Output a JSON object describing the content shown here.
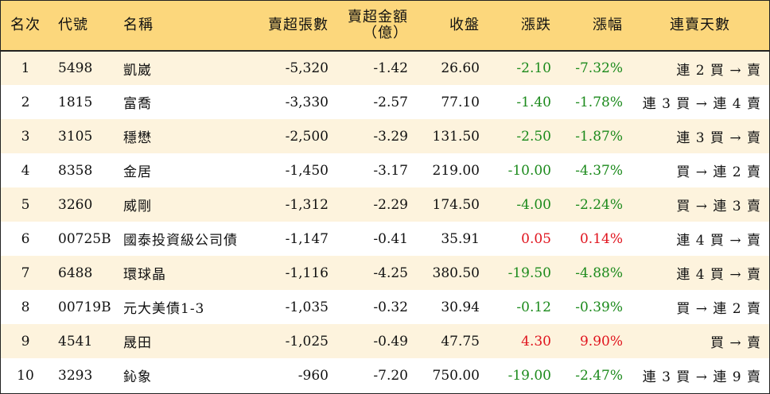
{
  "columns": {
    "rank": "名次",
    "code": "代號",
    "name": "名稱",
    "net_sell_lots": "賣超張數",
    "net_sell_amount_line1": "賣超金額",
    "net_sell_amount_line2": "（億）",
    "close": "收盤",
    "change": "漲跌",
    "pct_change": "漲幅",
    "consecutive_sell_days": "連賣天數"
  },
  "colors": {
    "header_bg": "#fcd77c",
    "odd_row_bg": "#fdf3dd",
    "negative": "#1c8a1c",
    "positive": "#e0141e"
  },
  "rows": [
    {
      "rank": "1",
      "code": "5498",
      "name": "凱崴",
      "lots": "-5,320",
      "amount": "-1.42",
      "close": "26.60",
      "change": "-2.10",
      "pct": "-7.32%",
      "days": "連 2 買 → 賣",
      "dir": "down"
    },
    {
      "rank": "2",
      "code": "1815",
      "name": "富喬",
      "lots": "-3,330",
      "amount": "-2.57",
      "close": "77.10",
      "change": "-1.40",
      "pct": "-1.78%",
      "days": "連 3 買 → 連 4 賣",
      "dir": "down"
    },
    {
      "rank": "3",
      "code": "3105",
      "name": "穩懋",
      "lots": "-2,500",
      "amount": "-3.29",
      "close": "131.50",
      "change": "-2.50",
      "pct": "-1.87%",
      "days": "連 3 買 → 賣",
      "dir": "down"
    },
    {
      "rank": "4",
      "code": "8358",
      "name": "金居",
      "lots": "-1,450",
      "amount": "-3.17",
      "close": "219.00",
      "change": "-10.00",
      "pct": "-4.37%",
      "days": "買 → 連 2 賣",
      "dir": "down"
    },
    {
      "rank": "5",
      "code": "3260",
      "name": "威剛",
      "lots": "-1,312",
      "amount": "-2.29",
      "close": "174.50",
      "change": "-4.00",
      "pct": "-2.24%",
      "days": "買 → 連 3 賣",
      "dir": "down"
    },
    {
      "rank": "6",
      "code": "00725B",
      "name": "國泰投資級公司債",
      "lots": "-1,147",
      "amount": "-0.41",
      "close": "35.91",
      "change": "0.05",
      "pct": "0.14%",
      "days": "連 4 買 → 賣",
      "dir": "up"
    },
    {
      "rank": "7",
      "code": "6488",
      "name": "環球晶",
      "lots": "-1,116",
      "amount": "-4.25",
      "close": "380.50",
      "change": "-19.50",
      "pct": "-4.88%",
      "days": "連 4 買 → 賣",
      "dir": "down"
    },
    {
      "rank": "8",
      "code": "00719B",
      "name": "元大美債1-3",
      "lots": "-1,035",
      "amount": "-0.32",
      "close": "30.94",
      "change": "-0.12",
      "pct": "-0.39%",
      "days": "買 → 連 2 賣",
      "dir": "down"
    },
    {
      "rank": "9",
      "code": "4541",
      "name": "晟田",
      "lots": "-1,025",
      "amount": "-0.49",
      "close": "47.75",
      "change": "4.30",
      "pct": "9.90%",
      "days": "買 → 賣",
      "dir": "up"
    },
    {
      "rank": "10",
      "code": "3293",
      "name": "鈊象",
      "lots": "-960",
      "amount": "-7.20",
      "close": "750.00",
      "change": "-19.00",
      "pct": "-2.47%",
      "days": "連 3 買 → 連 9 賣",
      "dir": "down"
    }
  ]
}
